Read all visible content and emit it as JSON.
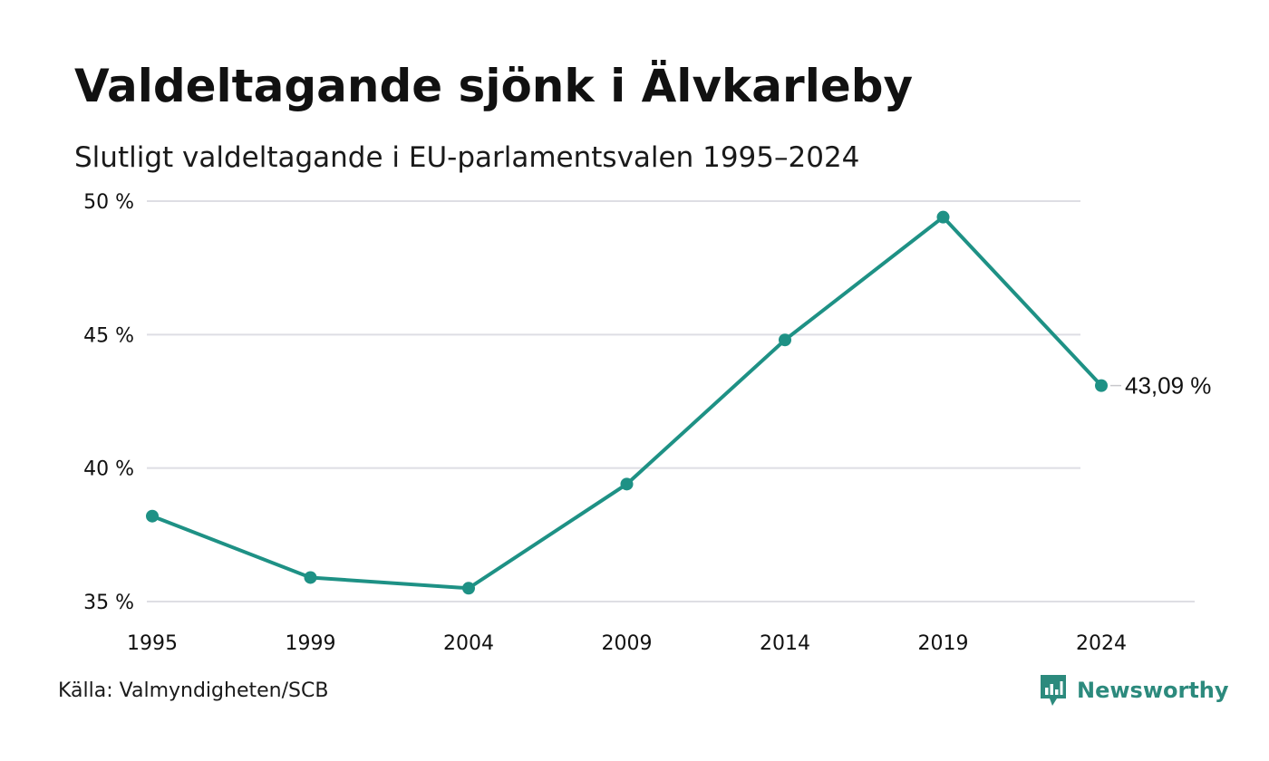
{
  "title": "Valdeltagande sjönk i Älvkarleby",
  "subtitle": "Slutligt valdeltagande i EU-parlamentsvalen 1995–2024",
  "source": "Källa: Valmyndigheten/SCB",
  "brand": {
    "name": "Newsworthy",
    "icon": "newsworthy-logo-icon",
    "color": "#2c8a7d"
  },
  "colors": {
    "series": "#1e9185",
    "grid": "#dedee4",
    "text": "#111111"
  },
  "chart_data": {
    "type": "line",
    "title": "Valdeltagande sjönk i Älvkarleby",
    "subtitle": "Slutligt valdeltagande i EU-parlamentsvalen 1995–2024",
    "xlabel": "",
    "ylabel": "",
    "categories": [
      "1995",
      "1999",
      "2004",
      "2009",
      "2014",
      "2019",
      "2024"
    ],
    "series": [
      {
        "values": [
          38.2,
          35.9,
          35.5,
          39.4,
          44.8,
          49.4,
          43.09
        ]
      }
    ],
    "ylim": [
      35,
      50
    ],
    "yticks": [
      35,
      40,
      45,
      50
    ],
    "ytick_labels": [
      "35 %",
      "40 %",
      "45 %",
      "50 %"
    ],
    "grid": true,
    "legend": "none",
    "annotations": [
      {
        "category": "2024",
        "value": 43.09,
        "text": "43,09 %"
      }
    ]
  }
}
